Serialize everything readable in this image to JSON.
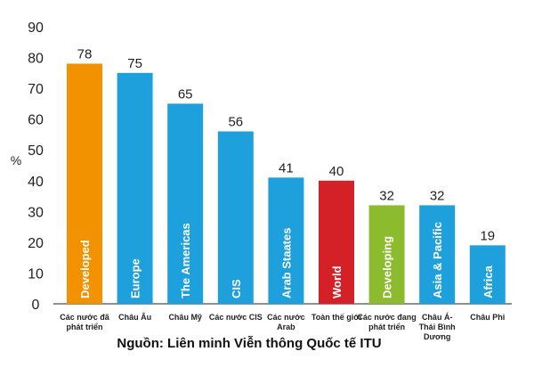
{
  "chart_data": {
    "type": "bar",
    "ylabel": "%",
    "ylim": [
      0,
      90
    ],
    "yticks": [
      0,
      10,
      20,
      30,
      40,
      50,
      60,
      70,
      80,
      90
    ],
    "grid": false,
    "categories": [
      {
        "label": [
          "Các nước đã",
          "phát triển"
        ],
        "inbar": "Developed",
        "value": 78,
        "color": "#f29200"
      },
      {
        "label": [
          "Châu Âu"
        ],
        "inbar": "Europe",
        "value": 75,
        "color": "#1ea0dc"
      },
      {
        "label": [
          "Châu Mỹ"
        ],
        "inbar": "The Americas",
        "value": 65,
        "color": "#1ea0dc"
      },
      {
        "label": [
          "Các nước CIS"
        ],
        "inbar": "CIS",
        "value": 56,
        "color": "#1ea0dc"
      },
      {
        "label": [
          "Các nước",
          "Arab"
        ],
        "inbar": "Arab Staates",
        "value": 41,
        "color": "#1ea0dc"
      },
      {
        "label": [
          "Toàn thế giới"
        ],
        "inbar": "World",
        "value": 40,
        "color": "#d42027"
      },
      {
        "label": [
          "Các nước đang",
          "phát triển"
        ],
        "inbar": "Developing",
        "value": 32,
        "color": "#8cbb2e"
      },
      {
        "label": [
          "Châu Á-",
          "Thái Bình",
          "Dương"
        ],
        "inbar": "Asia & Pacific",
        "value": 32,
        "color": "#1ea0dc"
      },
      {
        "label": [
          "Châu Phi"
        ],
        "inbar": "Africa",
        "value": 19,
        "color": "#1ea0dc"
      }
    ]
  },
  "source": "Nguồn: Liên minh Viễn thông Quốc tế ITU"
}
